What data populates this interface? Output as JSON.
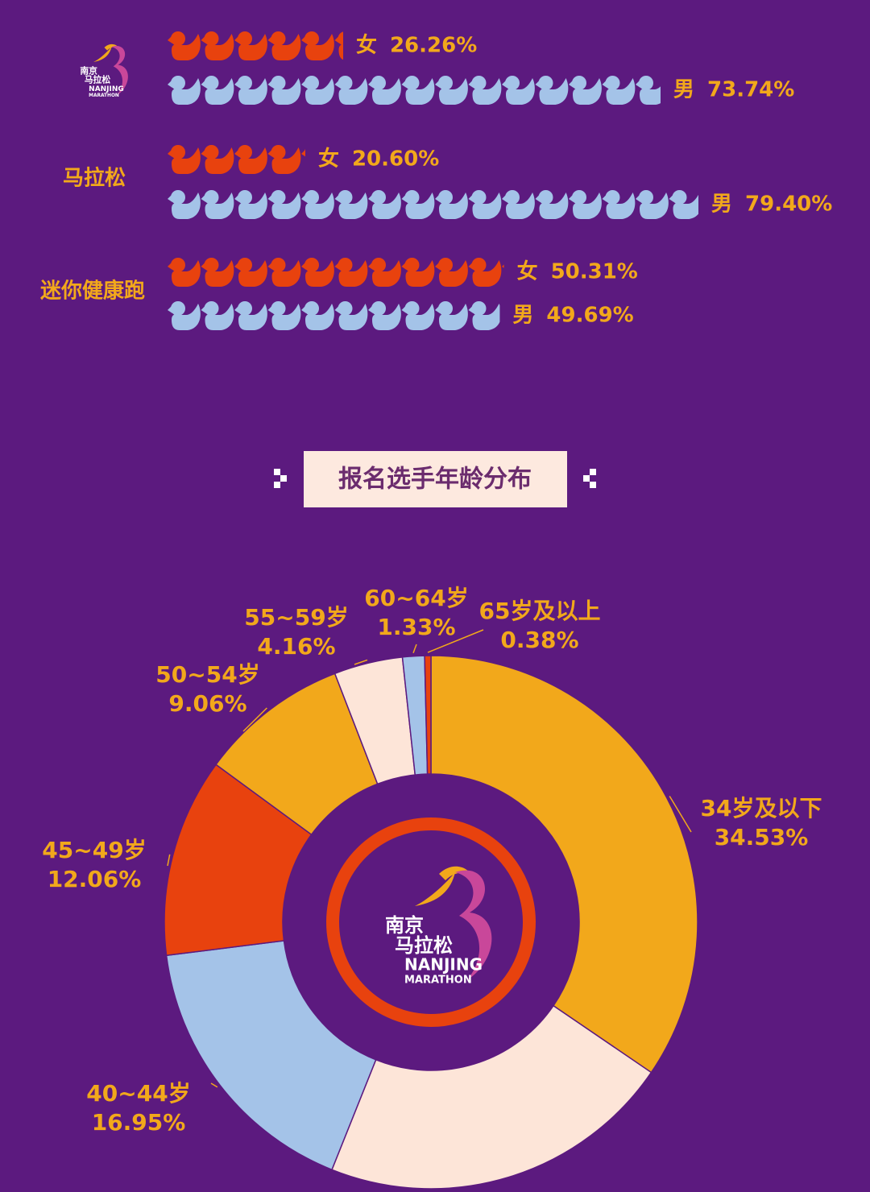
{
  "logo": {
    "line1": "南京",
    "line2": "马拉松",
    "line3": "NANJING",
    "line4": "MARATHON"
  },
  "chart_data": [
    {
      "type": "pictograph",
      "categories": [
        null,
        "马拉松",
        "迷你健康跑"
      ],
      "series": [
        {
          "name": "女",
          "color": "#e8420e",
          "values": [
            26.26,
            20.6,
            50.31
          ],
          "value_labels": [
            "26.26%",
            "20.60%",
            "50.31%"
          ]
        },
        {
          "name": "男",
          "color": "#a4c3e8",
          "values": [
            73.74,
            79.4,
            49.69
          ],
          "value_labels": [
            "73.74%",
            "79.40%",
            "49.69%"
          ]
        }
      ]
    },
    {
      "type": "donut",
      "title": "报名选手年龄分布",
      "categories": [
        "34岁及以下",
        null,
        "40~44岁",
        "45~49岁",
        "50~54岁",
        "55~59岁",
        "60~64岁",
        "65岁及以上"
      ],
      "values": [
        34.53,
        21.53,
        16.95,
        12.06,
        9.06,
        4.16,
        1.33,
        0.38
      ],
      "value_labels": [
        "34.53%",
        null,
        "16.95%",
        "12.06%",
        "9.06%",
        "4.16%",
        "1.33%",
        "0.38%"
      ],
      "colors": [
        "#f2a81b",
        "#fde5d8",
        "#a4c3e8",
        "#e8420e",
        "#f2a81b",
        "#fde5d8",
        "#a4c3e8",
        "#e8420e"
      ]
    }
  ]
}
